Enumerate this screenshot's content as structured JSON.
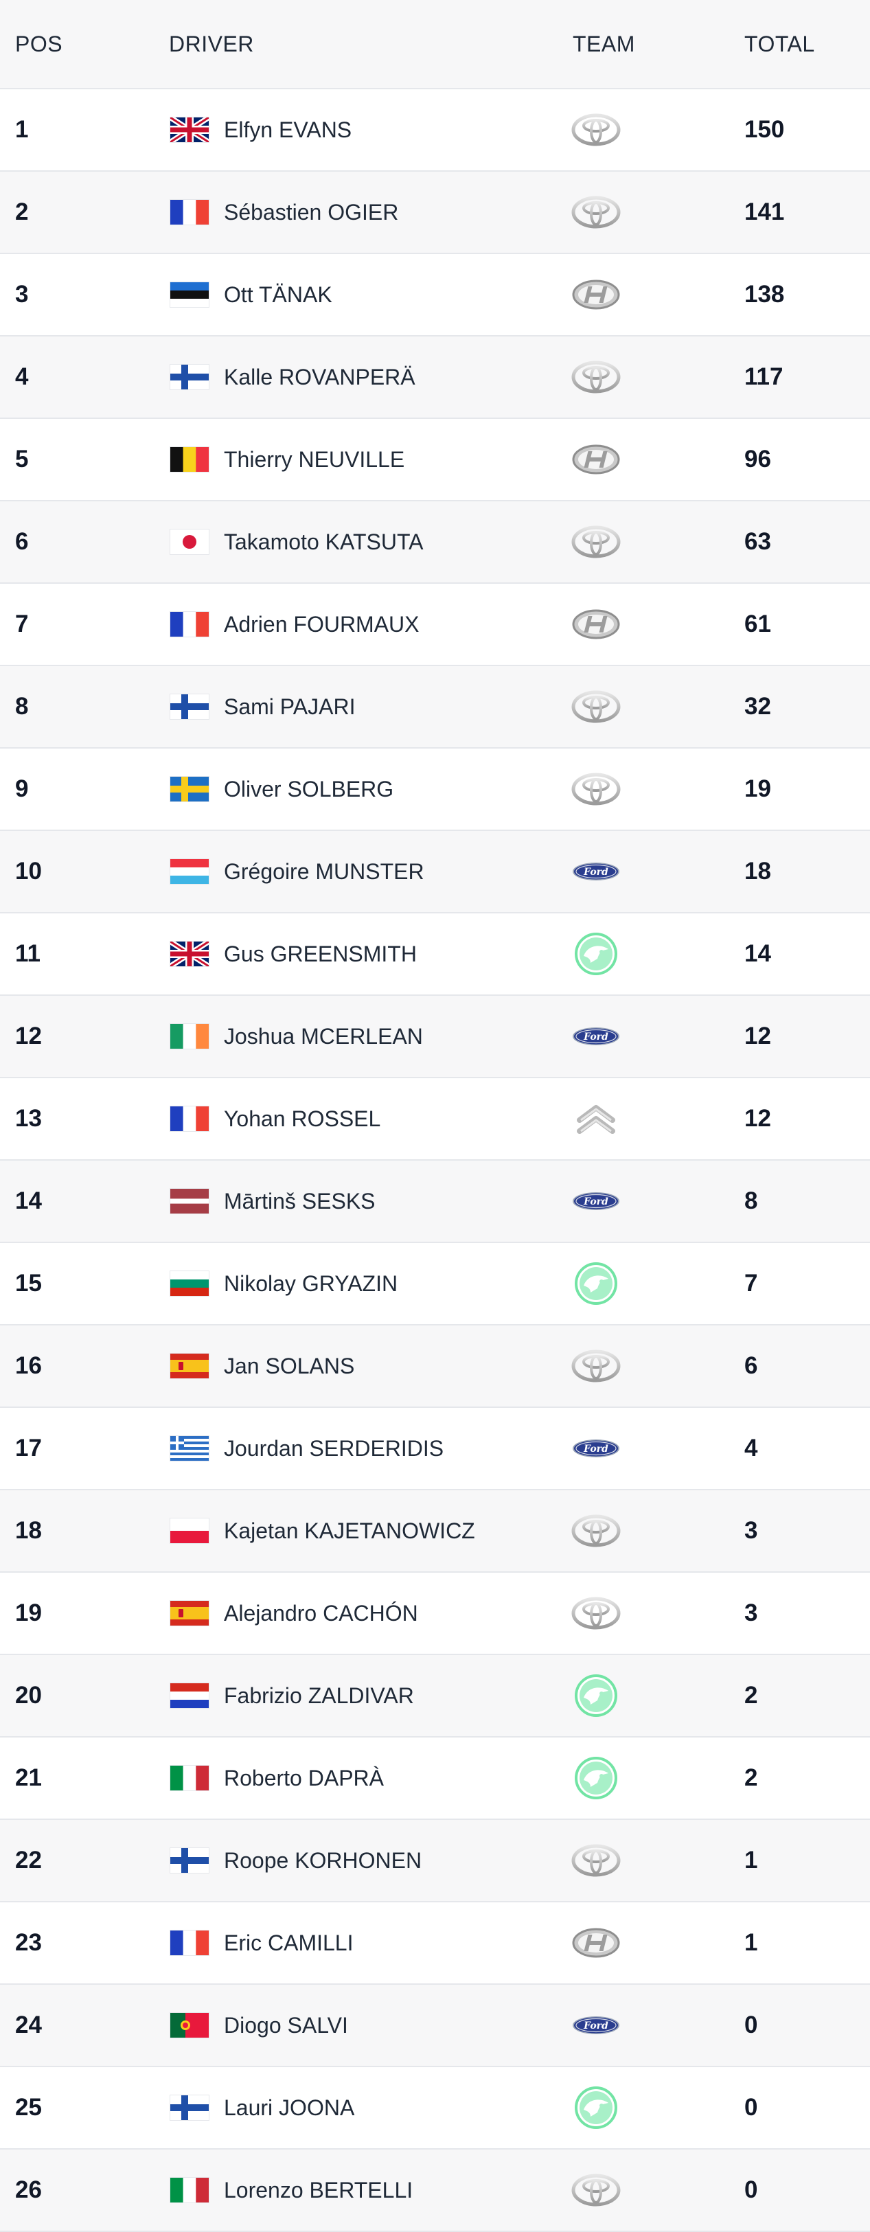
{
  "header": {
    "pos": "POS",
    "driver": "DRIVER",
    "team": "TEAM",
    "total": "TOTAL"
  },
  "rows": [
    {
      "pos": "1",
      "name": "Elfyn EVANS",
      "flag": "gb",
      "team": "toyota",
      "total": "150"
    },
    {
      "pos": "2",
      "name": "Sébastien OGIER",
      "flag": "fr",
      "team": "toyota",
      "total": "141"
    },
    {
      "pos": "3",
      "name": "Ott TÄNAK",
      "flag": "ee",
      "team": "hyundai",
      "total": "138"
    },
    {
      "pos": "4",
      "name": "Kalle ROVANPERÄ",
      "flag": "fi",
      "team": "toyota",
      "total": "117"
    },
    {
      "pos": "5",
      "name": "Thierry NEUVILLE",
      "flag": "be",
      "team": "hyundai",
      "total": "96"
    },
    {
      "pos": "6",
      "name": "Takamoto KATSUTA",
      "flag": "jp",
      "team": "toyota",
      "total": "63"
    },
    {
      "pos": "7",
      "name": "Adrien FOURMAUX",
      "flag": "fr",
      "team": "hyundai",
      "total": "61"
    },
    {
      "pos": "8",
      "name": "Sami PAJARI",
      "flag": "fi",
      "team": "toyota",
      "total": "32"
    },
    {
      "pos": "9",
      "name": "Oliver SOLBERG",
      "flag": "se",
      "team": "toyota",
      "total": "19"
    },
    {
      "pos": "10",
      "name": "Grégoire MUNSTER",
      "flag": "lu",
      "team": "ford",
      "total": "18"
    },
    {
      "pos": "11",
      "name": "Gus GREENSMITH",
      "flag": "gb",
      "team": "skoda",
      "total": "14"
    },
    {
      "pos": "12",
      "name": "Joshua MCERLEAN",
      "flag": "ie",
      "team": "ford",
      "total": "12"
    },
    {
      "pos": "13",
      "name": "Yohan ROSSEL",
      "flag": "fr",
      "team": "citroen",
      "total": "12"
    },
    {
      "pos": "14",
      "name": "Mārtinš SESKS",
      "flag": "lv",
      "team": "ford",
      "total": "8"
    },
    {
      "pos": "15",
      "name": "Nikolay GRYAZIN",
      "flag": "bg",
      "team": "skoda",
      "total": "7"
    },
    {
      "pos": "16",
      "name": "Jan SOLANS",
      "flag": "es",
      "team": "toyota",
      "total": "6"
    },
    {
      "pos": "17",
      "name": "Jourdan SERDERIDIS",
      "flag": "gr",
      "team": "ford",
      "total": "4"
    },
    {
      "pos": "18",
      "name": "Kajetan KAJETANOWICZ",
      "flag": "pl",
      "team": "toyota",
      "total": "3"
    },
    {
      "pos": "19",
      "name": "Alejandro CACHÓN",
      "flag": "es",
      "team": "toyota",
      "total": "3"
    },
    {
      "pos": "20",
      "name": "Fabrizio ZALDIVAR",
      "flag": "py",
      "team": "skoda",
      "total": "2"
    },
    {
      "pos": "21",
      "name": "Roberto DAPRÀ",
      "flag": "it",
      "team": "skoda",
      "total": "2"
    },
    {
      "pos": "22",
      "name": "Roope KORHONEN",
      "flag": "fi",
      "team": "toyota",
      "total": "1"
    },
    {
      "pos": "23",
      "name": "Eric CAMILLI",
      "flag": "fr",
      "team": "hyundai",
      "total": "1"
    },
    {
      "pos": "24",
      "name": "Diogo SALVI",
      "flag": "pt",
      "team": "ford",
      "total": "0"
    },
    {
      "pos": "25",
      "name": "Lauri JOONA",
      "flag": "fi",
      "team": "skoda",
      "total": "0"
    },
    {
      "pos": "26",
      "name": "Lorenzo BERTELLI",
      "flag": "it",
      "team": "toyota",
      "total": "0"
    }
  ]
}
